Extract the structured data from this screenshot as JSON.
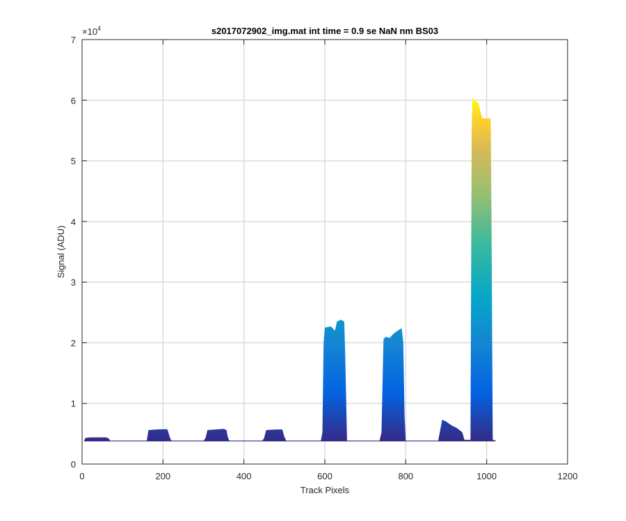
{
  "chart_data": {
    "type": "area",
    "title": "s2017072902_img.mat int time = 0.9 se  NaN nm BS03",
    "xlabel": "Track Pixels",
    "ylabel": "Signal (ADU)",
    "xlim": [
      0,
      1200
    ],
    "ylim": [
      0,
      70000
    ],
    "xticks": [
      0,
      200,
      400,
      600,
      800,
      1000,
      1200
    ],
    "xtick_labels": [
      "0",
      "200",
      "400",
      "600",
      "800",
      "1000",
      "1200"
    ],
    "yticks": [
      0,
      10000,
      20000,
      30000,
      40000,
      50000,
      60000,
      70000
    ],
    "ytick_labels": [
      "0",
      "1",
      "2",
      "3",
      "4",
      "5",
      "6",
      "7"
    ],
    "y_exponent_label": "×10",
    "y_exponent_power": "4",
    "grid": true,
    "colormap": "parula",
    "baseline": 3800,
    "series": [
      {
        "x": [
          5,
          8,
          20,
          40,
          60,
          66,
          70,
          150,
          160,
          164,
          185,
          210,
          212,
          218,
          222,
          300,
          305,
          310,
          330,
          350,
          357,
          360,
          364,
          445,
          450,
          455,
          480,
          495,
          500,
          505,
          590,
          594,
          597,
          600,
          615,
          625,
          630,
          640,
          648,
          650,
          655,
          735,
          740,
          745,
          750,
          760,
          770,
          780,
          790,
          794,
          797,
          800,
          880,
          885,
          890,
          900,
          915,
          925,
          935,
          940,
          945,
          960,
          963,
          965,
          970,
          980,
          985,
          990,
          1000,
          1010,
          1012,
          1015,
          1022
        ],
        "y": [
          3800,
          4300,
          4400,
          4400,
          4400,
          4200,
          3800,
          3800,
          3850,
          5600,
          5700,
          5750,
          5500,
          4200,
          3800,
          3800,
          4300,
          5600,
          5700,
          5800,
          5600,
          4500,
          3800,
          3800,
          4300,
          5600,
          5700,
          5700,
          4500,
          3800,
          3800,
          5200,
          20000,
          22500,
          22700,
          22000,
          23500,
          23800,
          23500,
          19000,
          3800,
          3800,
          5200,
          20500,
          21000,
          20800,
          21500,
          22000,
          22400,
          20000,
          8000,
          3800,
          3800,
          5500,
          7300,
          7000,
          6300,
          6000,
          5500,
          5200,
          4000,
          4000,
          55000,
          60500,
          60000,
          59500,
          58000,
          57000,
          57000,
          57000,
          40000,
          4000,
          3900
        ]
      }
    ]
  }
}
